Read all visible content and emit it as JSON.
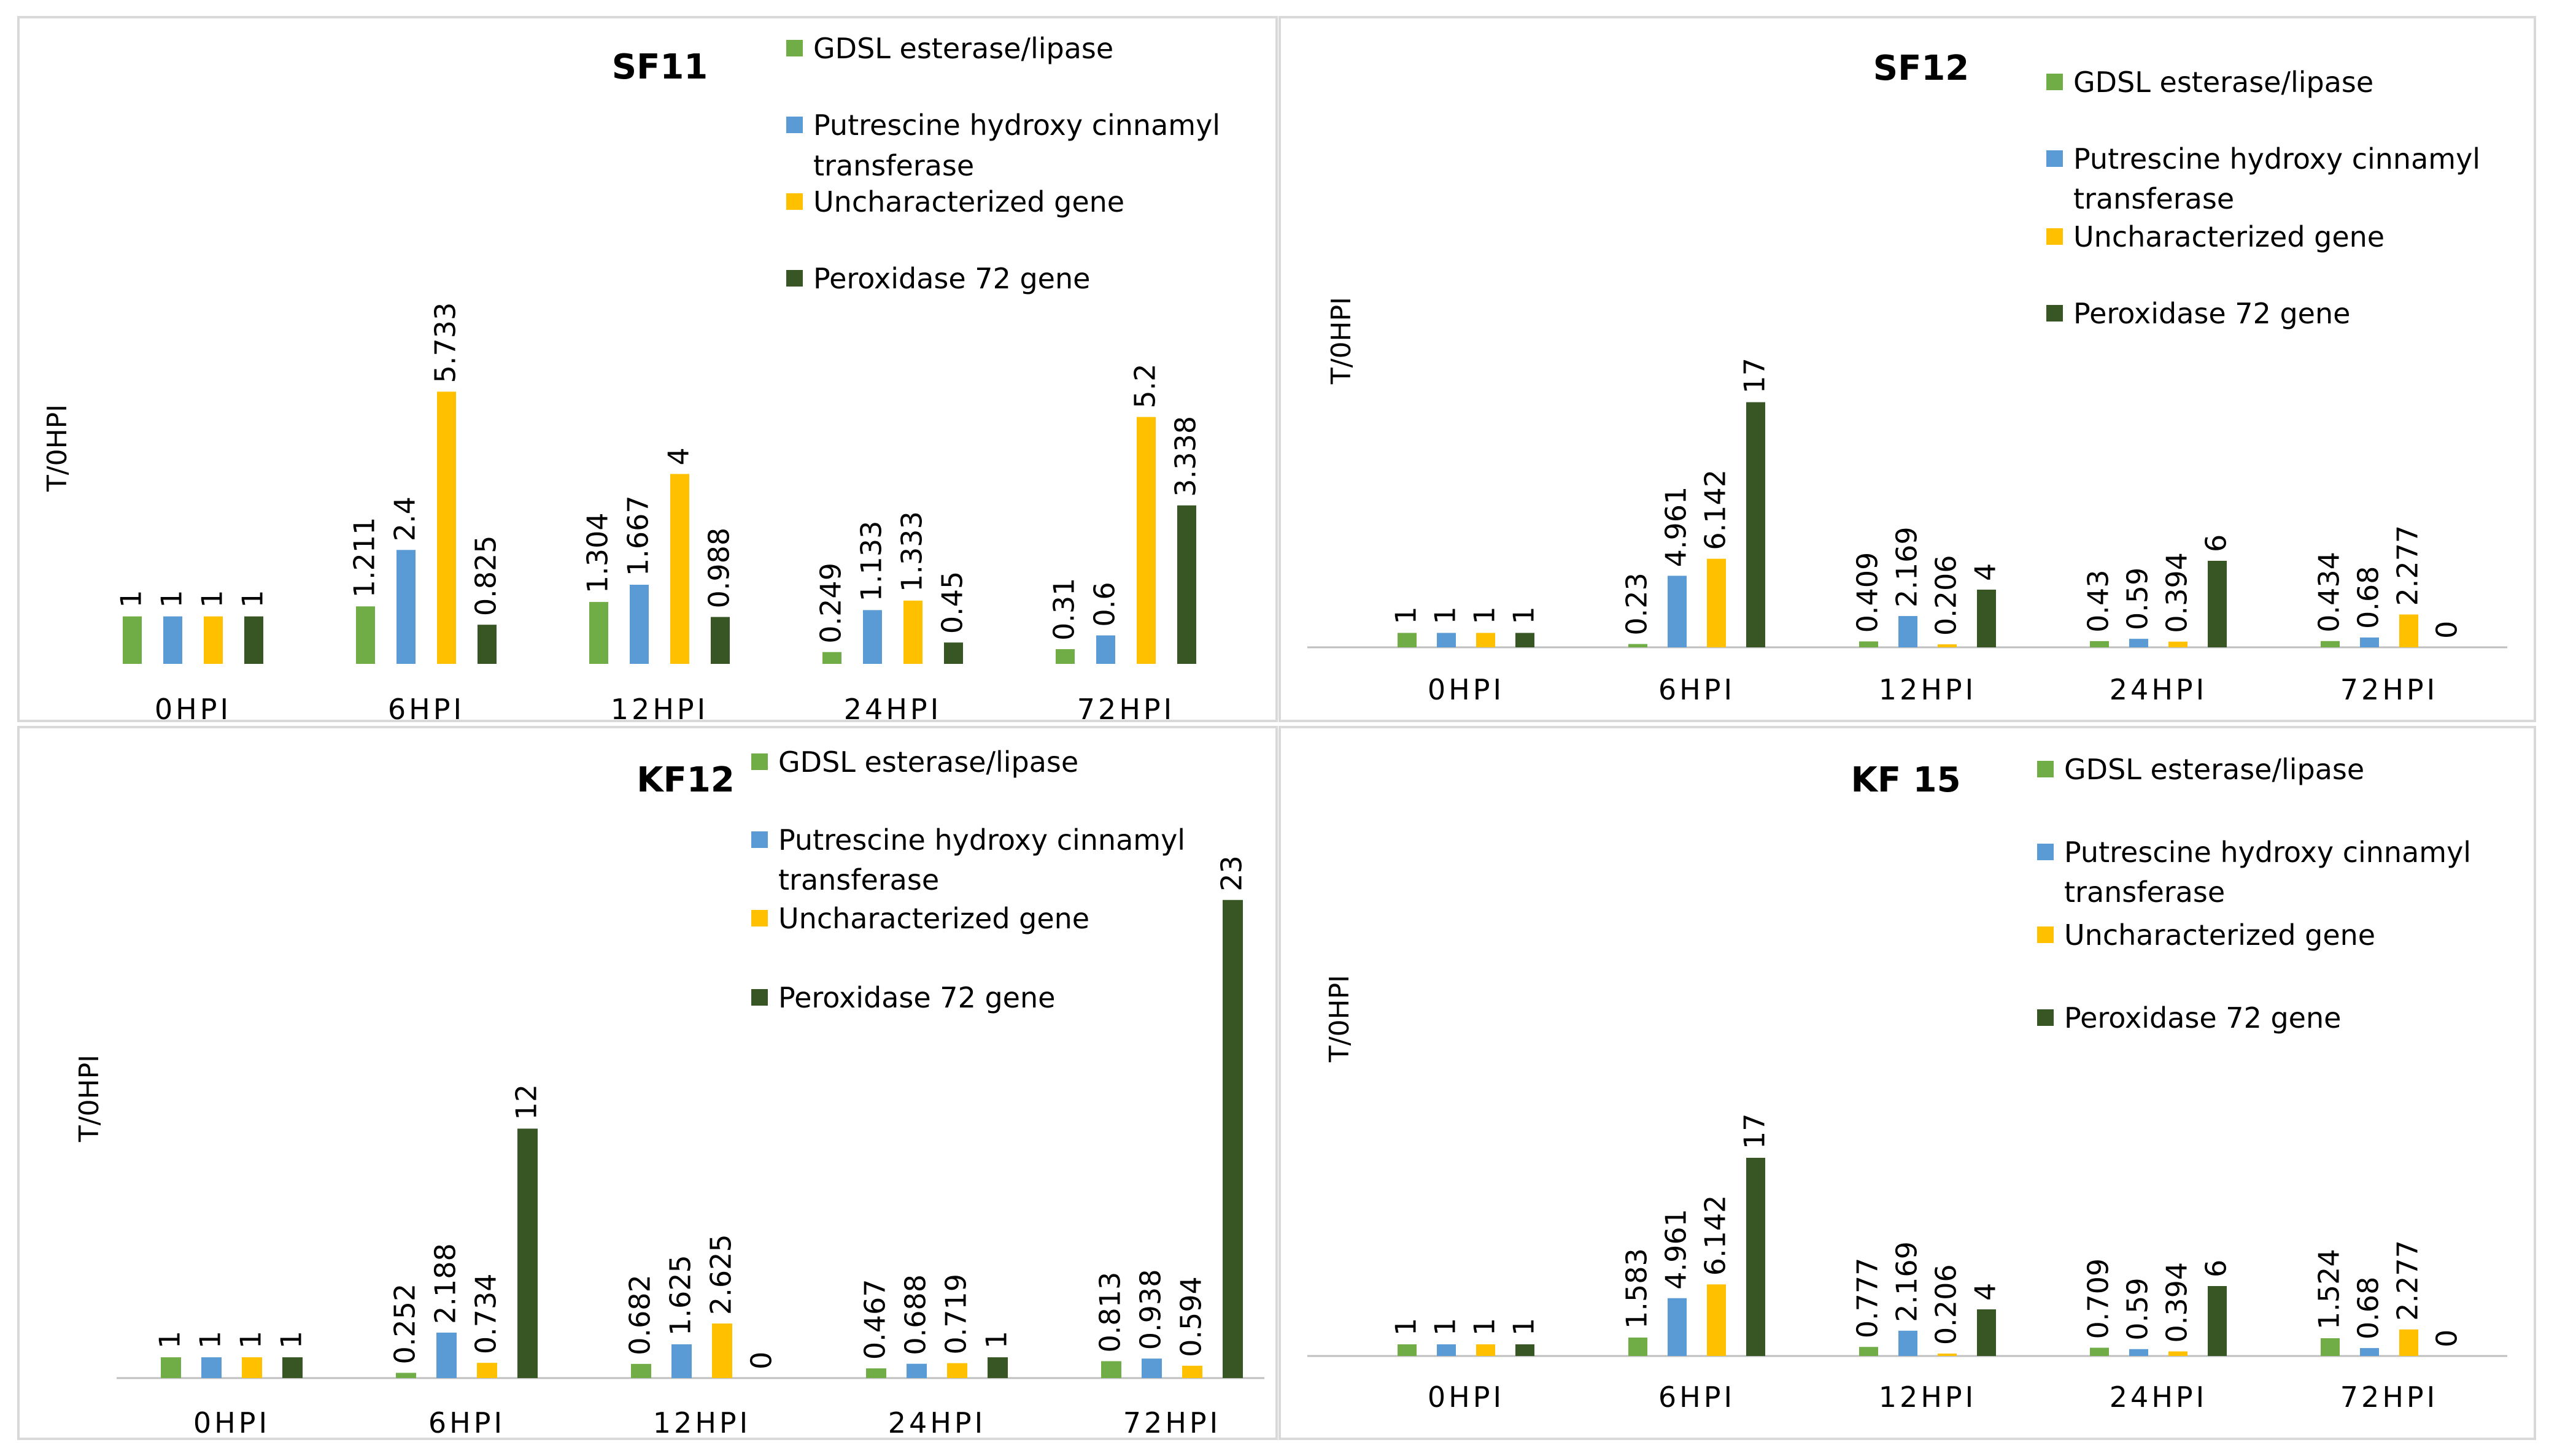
{
  "colors": {
    "gdsl": "#70AD47",
    "putrescine": "#5B9BD5",
    "uncharacterized": "#FFC000",
    "peroxidase": "#375623",
    "panel_border": "#D9D9D9",
    "axis": "#BFBFBF"
  },
  "chart_data": [
    {
      "type": "bar",
      "title": "SF11",
      "ylabel": "T/0HPI",
      "xlabel": "",
      "categories": [
        "0HPI",
        "6HPI",
        "12HPI",
        "24HPI",
        "72HPI"
      ],
      "legend_labels": [
        "GDSL esterase/lipase",
        "Putrescine hydroxy cinnamyl",
        "transferase",
        "Uncharacterized gene",
        "Peroxidase 72 gene"
      ],
      "ylim": [
        0,
        6.5
      ],
      "series": [
        {
          "name": "GDSL esterase/lipase",
          "values": [
            1,
            1.211,
            1.304,
            0.249,
            0.31
          ],
          "labels": [
            "1",
            "1.211",
            "1.304",
            "0.249",
            "0.31"
          ]
        },
        {
          "name": "Putrescine hydroxy cinnamyl transferase",
          "values": [
            1,
            2.4,
            1.667,
            1.133,
            0.6
          ],
          "labels": [
            "1",
            "2.4",
            "1.667",
            "1.133",
            "0.6"
          ]
        },
        {
          "name": "Uncharacterized gene",
          "values": [
            1,
            5.733,
            4,
            1.333,
            5.2
          ],
          "labels": [
            "1",
            "5.733",
            "4",
            "1.333",
            "5.2"
          ]
        },
        {
          "name": "Peroxidase 72 gene",
          "values": [
            1,
            0.825,
            0.988,
            0.45,
            3.338
          ],
          "labels": [
            "1",
            "0.825",
            "0.988",
            "0.45",
            "3.338"
          ]
        }
      ]
    },
    {
      "type": "bar",
      "title": "SF12",
      "ylabel": "T/0HPI",
      "xlabel": "",
      "categories": [
        "0HPI",
        "6HPI",
        "12HPI",
        "24HPI",
        "72HPI"
      ],
      "legend_labels": [
        "GDSL esterase/lipase",
        "Putrescine hydroxy cinnamyl",
        "transferase",
        "Uncharacterized gene",
        "Peroxidase 72 gene"
      ],
      "ylim": [
        0,
        20
      ],
      "series": [
        {
          "name": "GDSL esterase/lipase",
          "values": [
            1,
            0.23,
            0.409,
            0.43,
            0.434
          ],
          "labels": [
            "1",
            "0.23",
            "0.409",
            "0.43",
            "0.434"
          ]
        },
        {
          "name": "Putrescine hydroxy cinnamyl transferase",
          "values": [
            1,
            4.961,
            2.169,
            0.59,
            0.68
          ],
          "labels": [
            "1",
            "4.961",
            "2.169",
            "0.59",
            "0.68"
          ]
        },
        {
          "name": "Uncharacterized gene",
          "values": [
            1,
            6.142,
            0.206,
            0.394,
            2.277
          ],
          "labels": [
            "1",
            "6.142",
            "0.206",
            "0.394",
            "2.277"
          ]
        },
        {
          "name": "Peroxidase 72 gene",
          "values": [
            1,
            17,
            4,
            6,
            0
          ],
          "labels": [
            "1",
            "17",
            "4",
            "6",
            "0"
          ]
        }
      ]
    },
    {
      "type": "bar",
      "title": "KF12",
      "ylabel": "T/0HPI",
      "xlabel": "",
      "categories": [
        "0HPI",
        "6HPI",
        "12HPI",
        "24HPI",
        "72HPI"
      ],
      "legend_labels": [
        "GDSL esterase/lipase",
        "Putrescine hydroxy cinnamyl",
        "transferase",
        "Uncharacterized gene",
        "Peroxidase 72 gene"
      ],
      "ylim": [
        0,
        25
      ],
      "series": [
        {
          "name": "GDSL esterase/lipase",
          "values": [
            1,
            0.252,
            0.682,
            0.467,
            0.813
          ],
          "labels": [
            "1",
            "0.252",
            "0.682",
            "0.467",
            "0.813"
          ]
        },
        {
          "name": "Putrescine hydroxy cinnamyl transferase",
          "values": [
            1,
            2.188,
            1.625,
            0.688,
            0.938
          ],
          "labels": [
            "1",
            "2.188",
            "1.625",
            "0.688",
            "0.938"
          ]
        },
        {
          "name": "Uncharacterized gene",
          "values": [
            1,
            0.734,
            2.625,
            0.719,
            0.594
          ],
          "labels": [
            "1",
            "0.734",
            "2.625",
            "0.719",
            "0.594"
          ]
        },
        {
          "name": "Peroxidase 72 gene",
          "values": [
            1,
            12,
            0,
            1,
            23
          ],
          "labels": [
            "1",
            "12",
            "0",
            "1",
            "23"
          ]
        }
      ]
    },
    {
      "type": "bar",
      "title": "KF 15",
      "ylabel": "T/0HPI",
      "xlabel": "",
      "categories": [
        "0HPI",
        "6HPI",
        "12HPI",
        "24HPI",
        "72HPI"
      ],
      "legend_labels": [
        "GDSL esterase/lipase",
        "Putrescine hydroxy cinnamyl",
        "transferase",
        "Uncharacterized gene",
        "Peroxidase 72 gene"
      ],
      "ylim": [
        0,
        20
      ],
      "series": [
        {
          "name": "GDSL esterase/lipase",
          "values": [
            1,
            1.583,
            0.777,
            0.709,
            1.524
          ],
          "labels": [
            "1",
            "1.583",
            "0.777",
            "0.709",
            "1.524"
          ]
        },
        {
          "name": "Putrescine hydroxy cinnamyl transferase",
          "values": [
            1,
            4.961,
            2.169,
            0.59,
            0.68
          ],
          "labels": [
            "1",
            "4.961",
            "2.169",
            "0.59",
            "0.68"
          ]
        },
        {
          "name": "Uncharacterized gene",
          "values": [
            1,
            6.142,
            0.206,
            0.394,
            2.277
          ],
          "labels": [
            "1",
            "6.142",
            "0.206",
            "0.394",
            "2.277"
          ]
        },
        {
          "name": "Peroxidase 72 gene",
          "values": [
            1,
            17,
            4,
            6,
            0
          ],
          "labels": [
            "1",
            "17",
            "4",
            "6",
            "0"
          ]
        }
      ]
    }
  ]
}
